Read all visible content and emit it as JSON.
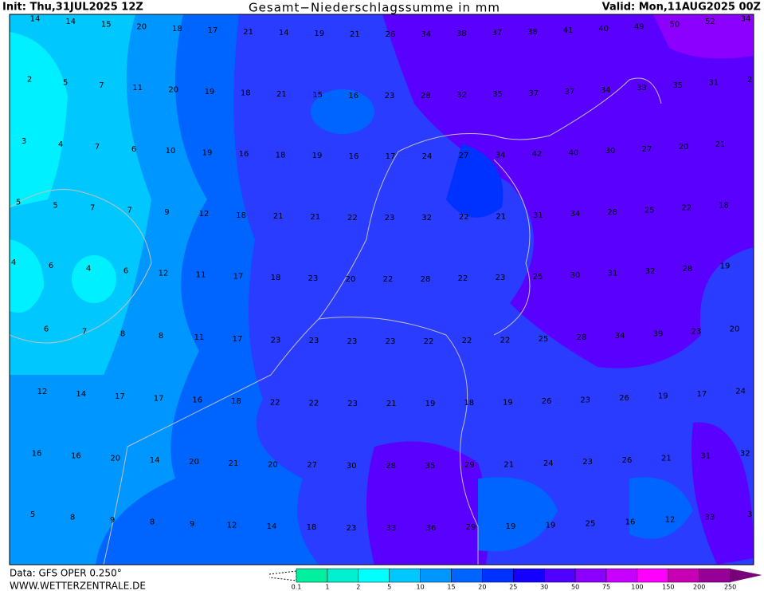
{
  "header": {
    "init": "Init: Thu,31JUL2025 12Z",
    "title": "Gesamt−Niederschlagssumme in mm",
    "valid": "Valid: Mon,11AUG2025 00Z"
  },
  "map": {
    "rows": [
      [
        14,
        14,
        15,
        20,
        18,
        17,
        21,
        14,
        19,
        21,
        26,
        34,
        38,
        37,
        38,
        41,
        40,
        49,
        50,
        52,
        34
      ],
      [
        2,
        5,
        7,
        11,
        20,
        19,
        18,
        21,
        15,
        16,
        23,
        28,
        32,
        35,
        37,
        37,
        34,
        33,
        35,
        31,
        2
      ],
      [
        3,
        4,
        7,
        6,
        10,
        19,
        16,
        18,
        19,
        16,
        17,
        24,
        27,
        34,
        42,
        40,
        30,
        27,
        20,
        21
      ],
      [
        5,
        5,
        7,
        7,
        9,
        12,
        18,
        21,
        21,
        22,
        23,
        32,
        22,
        21,
        31,
        34,
        28,
        25,
        22,
        18
      ],
      [
        4,
        6,
        4,
        6,
        12,
        11,
        17,
        18,
        23,
        20,
        22,
        28,
        22,
        23,
        25,
        30,
        31,
        32,
        28,
        19
      ],
      [
        6,
        7,
        8,
        8,
        11,
        17,
        23,
        23,
        23,
        23,
        22,
        22,
        22,
        25,
        28,
        34,
        39,
        23,
        20
      ],
      [
        12,
        14,
        17,
        17,
        16,
        18,
        22,
        22,
        23,
        21,
        19,
        18,
        19,
        26,
        23,
        26,
        19,
        17,
        24
      ],
      [
        16,
        16,
        20,
        14,
        20,
        21,
        20,
        27,
        30,
        28,
        35,
        29,
        21,
        24,
        23,
        26,
        21,
        31,
        32
      ],
      [
        5,
        8,
        9,
        8,
        9,
        12,
        14,
        18,
        23,
        33,
        36,
        29,
        19,
        19,
        25,
        16,
        12,
        33,
        3
      ]
    ]
  },
  "legend": {
    "labels": [
      0.1,
      1,
      2,
      5,
      10,
      15,
      20,
      25,
      30,
      50,
      75,
      100,
      150,
      200,
      250
    ],
    "colors": [
      "#00f0a0",
      "#00f0d0",
      "#00ffff",
      "#00c8ff",
      "#0096ff",
      "#0064ff",
      "#0032ff",
      "#1400ff",
      "#5000ff",
      "#8c00ff",
      "#c800ff",
      "#ff00ff",
      "#c800b4",
      "#960096",
      "#780078"
    ]
  },
  "footer": {
    "source": "Data: GFS OPER 0.250°",
    "site": "WWW.WETTERZENTRALE.DE"
  }
}
